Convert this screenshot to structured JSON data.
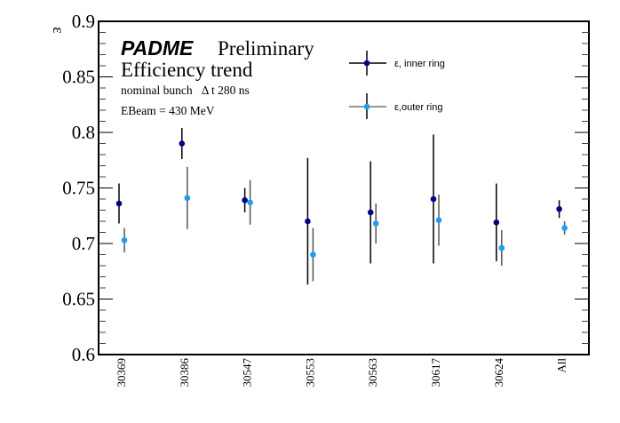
{
  "chart_data": {
    "type": "scatter",
    "title": "PADME",
    "title_suffix": "Preliminary",
    "subtitle": "Efficiency trend",
    "annotations": [
      "nominal bunch   Δ t 280 ns",
      "EBeam = 430 MeV"
    ],
    "xlabel": "",
    "ylabel": "ε",
    "categories": [
      "30369",
      "30386",
      "30547",
      "30553",
      "30563",
      "30617",
      "30624",
      "All"
    ],
    "ylim": [
      0.6,
      0.9
    ],
    "yticks": [
      0.6,
      0.65,
      0.7,
      0.75,
      0.8,
      0.85,
      0.9
    ],
    "ytick_labels": [
      "0.6",
      "0.65",
      "0.7",
      "0.75",
      "0.8",
      "0.85",
      "0.9"
    ],
    "grid": false,
    "legend_position": "top-center",
    "series": [
      {
        "name": "ε, inner ring",
        "color": "#00008b",
        "error_color": "#000000",
        "values": [
          0.736,
          0.79,
          0.739,
          0.72,
          0.728,
          0.74,
          0.719,
          0.731
        ],
        "errors": [
          0.018,
          0.014,
          0.011,
          0.057,
          0.046,
          0.058,
          0.035,
          0.008
        ]
      },
      {
        "name": "ε,outer ring",
        "color": "#1e9cf0",
        "error_color": "#555555",
        "values": [
          0.703,
          0.741,
          0.737,
          0.69,
          0.718,
          0.721,
          0.696,
          0.714
        ],
        "errors": [
          0.011,
          0.028,
          0.02,
          0.024,
          0.018,
          0.023,
          0.016,
          0.006
        ]
      }
    ]
  }
}
